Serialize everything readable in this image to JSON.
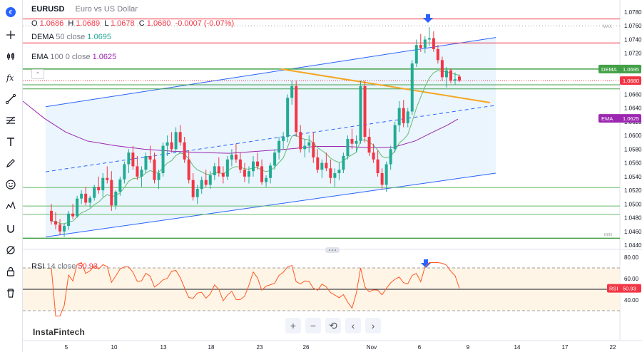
{
  "legend": {
    "symbol": "EURUSD",
    "description": "Euro vs US Dollar",
    "ohlc": {
      "o_label": "O",
      "o": "1.0686",
      "h_label": "H",
      "h": "1.0689",
      "l_label": "L",
      "l": "1.0678",
      "c_label": "C",
      "c": "1.0680",
      "change": "-0.0007 (-0.07%)"
    },
    "dema": {
      "name": "DEMA",
      "params": "50 close",
      "value": "1.0695"
    },
    "ema": {
      "name": "EMA",
      "params": "100 0 close",
      "value": "1.0625"
    }
  },
  "rsi": {
    "name": "RSI",
    "params": "14 close",
    "value": "50.93",
    "axis": [
      "80.00",
      "60.00",
      "40.00"
    ],
    "label": "RSI"
  },
  "price_axis": [
    "1.0780",
    "1.0760",
    "1.0740",
    "1.0720",
    "1.0700",
    "1.0680",
    "1.0660",
    "1.0640",
    "1.0620",
    "1.0600",
    "1.0580",
    "1.0560",
    "1.0540",
    "1.0520",
    "1.0500",
    "1.0480",
    "1.0460",
    "1.0440"
  ],
  "price_labels": {
    "dema_label": "DEMA",
    "dema": "1.0695",
    "close": "1.0680",
    "ema_label": "EMA",
    "ema": "1.0625",
    "max": "MAX",
    "min": "MIN"
  },
  "time_axis": [
    "5",
    "10",
    "13",
    "18",
    "23",
    "26",
    "Nov",
    "6",
    "9",
    "14",
    "17",
    "22"
  ],
  "brand": "InstaFintech",
  "colors": {
    "up": "#22ab94",
    "down": "#f23645",
    "dema": "#66bb6a",
    "ema": "#9c27b0",
    "channel": "#2962ff",
    "trend": "#f5a623",
    "arrow": "#2962ff"
  },
  "toolbar": [
    "logo-icon",
    "crosshair-icon",
    "bars-icon",
    "fx-icon",
    "trendline-icon",
    "fib-icon",
    "text-icon",
    "brush-icon",
    "emoji-icon",
    "pattern-icon",
    "magnet-icon",
    "hide-icon",
    "lock-icon",
    "delete-icon"
  ],
  "nav": [
    "+",
    "−",
    "⟲",
    "‹",
    "›"
  ],
  "chart_data": {
    "type": "candlestick",
    "title": "EURUSD",
    "ylim": [
      1.044,
      1.078
    ],
    "candles": [
      [
        1.049,
        1.05,
        1.047,
        1.0475
      ],
      [
        1.0475,
        1.0488,
        1.0463,
        1.047
      ],
      [
        1.047,
        1.0478,
        1.0455,
        1.046
      ],
      [
        1.046,
        1.0472,
        1.0452,
        1.0468
      ],
      [
        1.0468,
        1.049,
        1.0462,
        1.0486
      ],
      [
        1.0486,
        1.05,
        1.0478,
        1.0482
      ],
      [
        1.0482,
        1.0512,
        1.048,
        1.0508
      ],
      [
        1.0508,
        1.052,
        1.05,
        1.0515
      ],
      [
        1.0515,
        1.0525,
        1.0498,
        1.0502
      ],
      [
        1.0502,
        1.0512,
        1.0495,
        1.0509
      ],
      [
        1.0509,
        1.0528,
        1.0505,
        1.0525
      ],
      [
        1.0525,
        1.054,
        1.0515,
        1.052
      ],
      [
        1.052,
        1.0545,
        1.051,
        1.0538
      ],
      [
        1.0538,
        1.0555,
        1.053,
        1.0535
      ],
      [
        1.0535,
        1.0548,
        1.049,
        1.0498
      ],
      [
        1.0498,
        1.052,
        1.0492,
        1.0518
      ],
      [
        1.0518,
        1.054,
        1.0512,
        1.0536
      ],
      [
        1.0536,
        1.0562,
        1.053,
        1.0558
      ],
      [
        1.0558,
        1.058,
        1.0545,
        1.0575
      ],
      [
        1.0575,
        1.0585,
        1.055,
        1.0555
      ],
      [
        1.0555,
        1.057,
        1.0535,
        1.054
      ],
      [
        1.054,
        1.0555,
        1.0525,
        1.055
      ],
      [
        1.055,
        1.0575,
        1.0545,
        1.057
      ],
      [
        1.057,
        1.0585,
        1.056,
        1.0565
      ],
      [
        1.0565,
        1.0575,
        1.053,
        1.0535
      ],
      [
        1.0535,
        1.055,
        1.0522,
        1.0545
      ],
      [
        1.0545,
        1.059,
        1.054,
        1.0585
      ],
      [
        1.0585,
        1.06,
        1.057,
        1.059
      ],
      [
        1.059,
        1.0605,
        1.0575,
        1.058
      ],
      [
        1.058,
        1.0612,
        1.0575,
        1.0605
      ],
      [
        1.0605,
        1.0615,
        1.0585,
        1.059
      ],
      [
        1.059,
        1.0598,
        1.056,
        1.0565
      ],
      [
        1.0565,
        1.0578,
        1.053,
        1.0535
      ],
      [
        1.0535,
        1.0545,
        1.0505,
        1.051
      ],
      [
        1.051,
        1.0528,
        1.05,
        1.0522
      ],
      [
        1.0522,
        1.054,
        1.0515,
        1.0535
      ],
      [
        1.0535,
        1.055,
        1.0525,
        1.0528
      ],
      [
        1.0528,
        1.0548,
        1.0522,
        1.0542
      ],
      [
        1.0542,
        1.056,
        1.0535,
        1.0555
      ],
      [
        1.0555,
        1.0568,
        1.054,
        1.0545
      ],
      [
        1.0545,
        1.0555,
        1.053,
        1.054
      ],
      [
        1.054,
        1.057,
        1.0535,
        1.0565
      ],
      [
        1.0565,
        1.058,
        1.0555,
        1.0572
      ],
      [
        1.0572,
        1.0588,
        1.056,
        1.0565
      ],
      [
        1.0565,
        1.0575,
        1.0545,
        1.055
      ],
      [
        1.055,
        1.056,
        1.0532,
        1.054
      ],
      [
        1.054,
        1.0555,
        1.053,
        1.0548
      ],
      [
        1.0548,
        1.057,
        1.054,
        1.0562
      ],
      [
        1.0562,
        1.0575,
        1.055,
        1.0555
      ],
      [
        1.0555,
        1.0565,
        1.0528,
        1.0532
      ],
      [
        1.0532,
        1.0542,
        1.0525,
        1.0538
      ],
      [
        1.0538,
        1.056,
        1.053,
        1.0556
      ],
      [
        1.0556,
        1.058,
        1.055,
        1.0575
      ],
      [
        1.0575,
        1.0598,
        1.0565,
        1.0592
      ],
      [
        1.0592,
        1.0605,
        1.058,
        1.0598
      ],
      [
        1.0598,
        1.066,
        1.059,
        1.0655
      ],
      [
        1.0655,
        1.068,
        1.0645,
        1.0672
      ],
      [
        1.0672,
        1.068,
        1.0598,
        1.0605
      ],
      [
        1.0605,
        1.0615,
        1.0575,
        1.058
      ],
      [
        1.058,
        1.0595,
        1.0568,
        1.0585
      ],
      [
        1.0585,
        1.06,
        1.0575,
        1.059
      ],
      [
        1.059,
        1.0605,
        1.056,
        1.0568
      ],
      [
        1.0568,
        1.058,
        1.0545,
        1.055
      ],
      [
        1.055,
        1.0565,
        1.0538,
        1.056
      ],
      [
        1.056,
        1.0575,
        1.0548,
        1.0552
      ],
      [
        1.0552,
        1.0565,
        1.053,
        1.0538
      ],
      [
        1.0538,
        1.0552,
        1.0525,
        1.0545
      ],
      [
        1.0545,
        1.056,
        1.0535,
        1.055
      ],
      [
        1.055,
        1.0575,
        1.0545,
        1.057
      ],
      [
        1.057,
        1.06,
        1.0565,
        1.0595
      ],
      [
        1.0595,
        1.061,
        1.058,
        1.0588
      ],
      [
        1.0588,
        1.06,
        1.0575,
        1.0592
      ],
      [
        1.0592,
        1.068,
        1.0588,
        1.0672
      ],
      [
        1.0672,
        1.068,
        1.059,
        1.0598
      ],
      [
        1.0598,
        1.061,
        1.057,
        1.0575
      ],
      [
        1.0575,
        1.0588,
        1.056,
        1.0565
      ],
      [
        1.0565,
        1.0578,
        1.054,
        1.0545
      ],
      [
        1.0545,
        1.0552,
        1.0522,
        1.0528
      ],
      [
        1.0528,
        1.0562,
        1.0518,
        1.0558
      ],
      [
        1.0558,
        1.0585,
        1.055,
        1.058
      ],
      [
        1.058,
        1.062,
        1.0575,
        1.0615
      ],
      [
        1.0615,
        1.065,
        1.0605,
        1.064
      ],
      [
        1.064,
        1.0652,
        1.0612,
        1.0618
      ],
      [
        1.0618,
        1.064,
        1.0612,
        1.0635
      ],
      [
        1.0635,
        1.071,
        1.063,
        1.0705
      ],
      [
        1.0705,
        1.074,
        1.07,
        1.0732
      ],
      [
        1.0732,
        1.0748,
        1.0722,
        1.0728
      ],
      [
        1.0728,
        1.0745,
        1.072,
        1.074
      ],
      [
        1.074,
        1.0758,
        1.073,
        1.0742
      ],
      [
        1.0742,
        1.0752,
        1.0722,
        1.0726
      ],
      [
        1.0726,
        1.0732,
        1.0705,
        1.071
      ],
      [
        1.071,
        1.0715,
        1.068,
        1.0685
      ],
      [
        1.0685,
        1.07,
        1.067,
        1.0695
      ],
      [
        1.0695,
        1.0698,
        1.0676,
        1.068
      ],
      [
        1.068,
        1.0692,
        1.0674,
        1.0682
      ],
      [
        1.0686,
        1.0689,
        1.0678,
        1.068
      ]
    ]
  }
}
